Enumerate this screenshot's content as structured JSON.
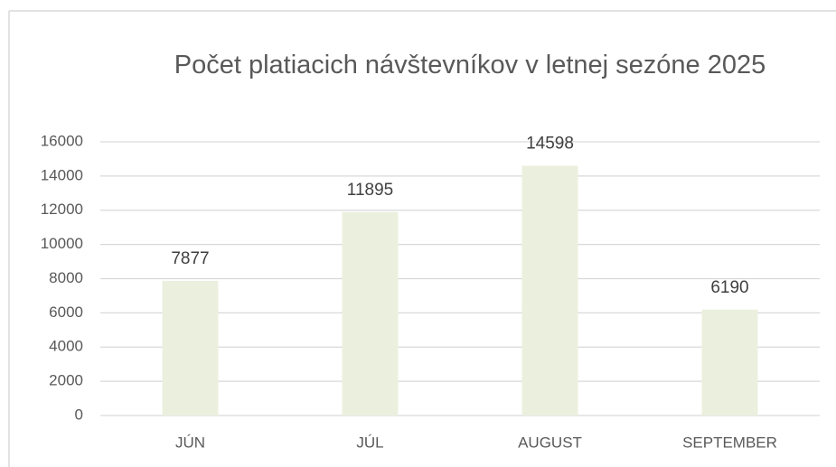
{
  "chart_data": {
    "type": "bar",
    "title": "Počet platiacich návštevníkov v letnej sezóne 2025",
    "categories": [
      "JÚN",
      "JÚL",
      "AUGUST",
      "SEPTEMBER"
    ],
    "values": [
      7877,
      11895,
      14598,
      6190
    ],
    "color": "#ebf0de",
    "ylim": [
      0,
      16000
    ],
    "yticks": [
      0,
      2000,
      4000,
      6000,
      8000,
      10000,
      12000,
      14000,
      16000
    ],
    "grid": true
  }
}
